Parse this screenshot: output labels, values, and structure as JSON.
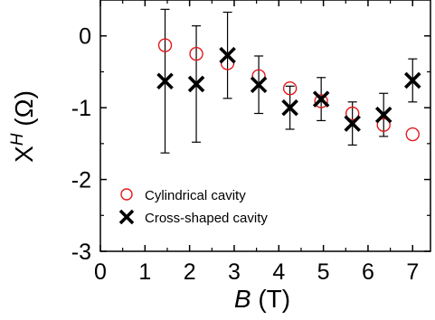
{
  "chart_data": {
    "type": "scatter",
    "xlim": [
      0,
      7.4
    ],
    "ylim": [
      -3,
      0.5
    ],
    "xticks": [
      0,
      1,
      2,
      3,
      4,
      5,
      6,
      7
    ],
    "yticks": [
      0,
      -1,
      -2,
      -3
    ],
    "xtick_labels": [
      "0",
      "1",
      "2",
      "3",
      "4",
      "5",
      "6",
      "7"
    ],
    "ytick_labels": [
      "0",
      "-1",
      "-2",
      "-3"
    ],
    "xlabel_italic": "B",
    "xlabel_rest": " (T)",
    "ylabel_main": "X",
    "ylabel_sup": "H",
    "ylabel_rest": " (Ω)",
    "grid": false,
    "legend_position": "lower-left",
    "series": [
      {
        "name": "Cylindrical cavity",
        "marker": "open-circle",
        "color": "#e31a1c",
        "x": [
          1.45,
          2.15,
          2.85,
          3.55,
          4.25,
          4.95,
          5.65,
          6.35,
          7.0
        ],
        "y": [
          -0.13,
          -0.25,
          -0.38,
          -0.56,
          -0.73,
          -0.91,
          -1.08,
          -1.24,
          -1.37
        ]
      },
      {
        "name": "Cross-shaped  cavity",
        "marker": "x",
        "color": "#000000",
        "x": [
          1.45,
          2.15,
          2.85,
          3.55,
          4.25,
          4.95,
          5.65,
          6.35,
          7.0
        ],
        "y": [
          -0.63,
          -0.67,
          -0.27,
          -0.68,
          -1.0,
          -0.88,
          -1.22,
          -1.1,
          -0.62
        ],
        "yerr": [
          1.0,
          0.81,
          0.6,
          0.4,
          0.3,
          0.3,
          0.3,
          0.3,
          0.3
        ]
      }
    ]
  }
}
